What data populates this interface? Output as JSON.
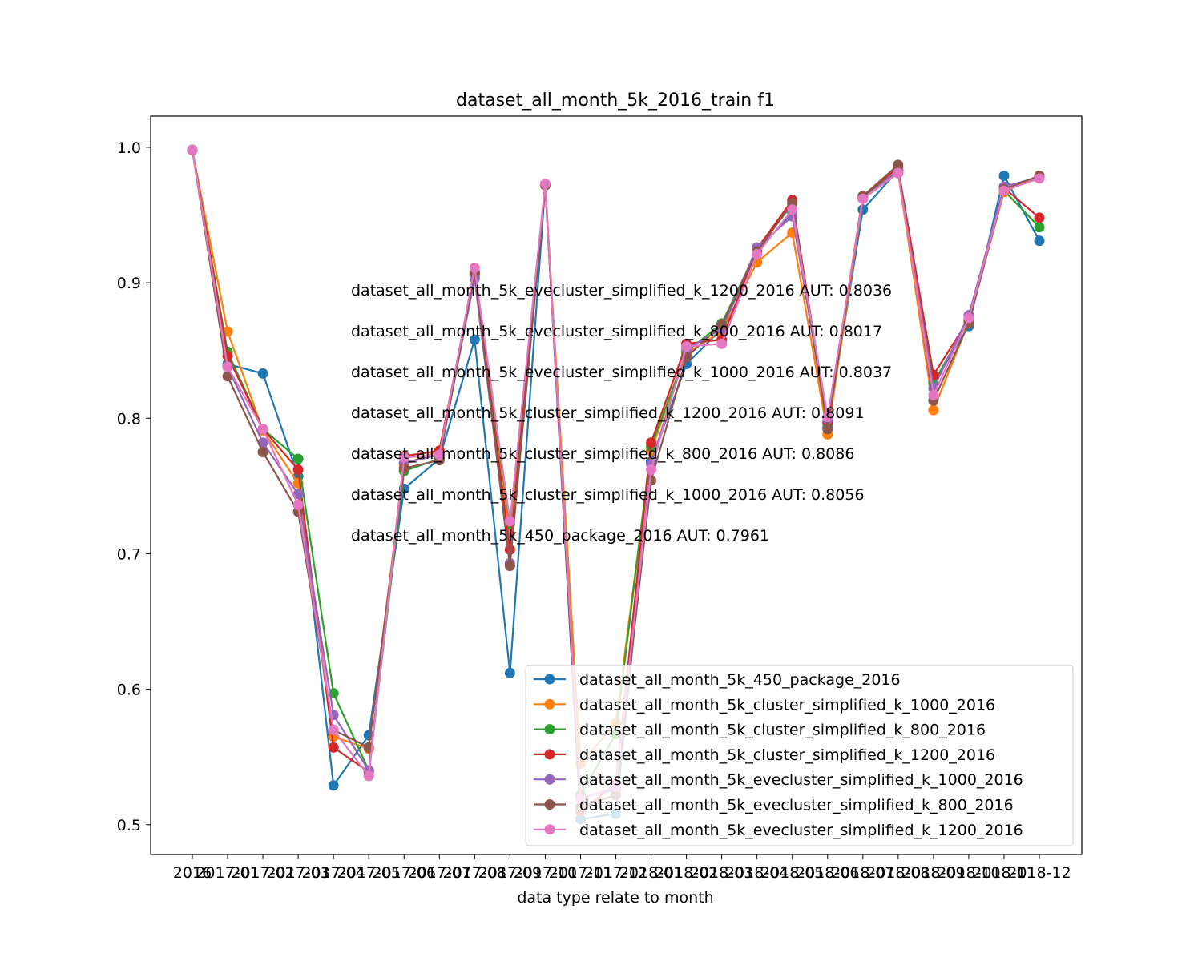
{
  "chart_data": {
    "type": "line",
    "title": "dataset_all_month_5k_2016_train f1",
    "xlabel": "data type relate to month",
    "ylabel": "",
    "ylim": [
      0.478,
      1.023
    ],
    "yticks": [
      "0.5",
      "0.6",
      "0.7",
      "0.8",
      "0.9",
      "1.0"
    ],
    "categories": [
      "2016",
      "2017-01",
      "2017-02",
      "2017-03",
      "2017-04",
      "2017-05",
      "2017-06",
      "2017-07",
      "2017-08",
      "2017-09",
      "2017-10",
      "2017-11",
      "2017-12",
      "2018-01",
      "2018-02",
      "2018-03",
      "2018-04",
      "2018-05",
      "2018-06",
      "2018-07",
      "2018-08",
      "2018-09",
      "2018-10",
      "2018-11",
      "2018-12"
    ],
    "legend_position": "lower right",
    "series": [
      {
        "name": "dataset_all_month_5k_450_package_2016",
        "color": "#1f77b4",
        "values": [
          0.998,
          0.84,
          0.833,
          0.757,
          0.529,
          0.566,
          0.748,
          0.77,
          0.858,
          0.612,
          0.972,
          0.504,
          0.508,
          0.768,
          0.84,
          0.866,
          0.923,
          0.952,
          0.793,
          0.954,
          0.983,
          0.826,
          0.868,
          0.979,
          0.931
        ]
      },
      {
        "name": "dataset_all_month_5k_cluster_simplified_k_1000_2016",
        "color": "#ff7f0e",
        "values": [
          0.998,
          0.864,
          0.791,
          0.752,
          0.565,
          0.556,
          0.766,
          0.776,
          0.906,
          0.715,
          0.972,
          0.545,
          0.575,
          0.776,
          0.848,
          0.864,
          0.915,
          0.937,
          0.788,
          0.962,
          0.981,
          0.806,
          0.871,
          0.967,
          0.979
        ]
      },
      {
        "name": "dataset_all_month_5k_cluster_simplified_k_800_2016",
        "color": "#2ca02c",
        "values": [
          0.998,
          0.849,
          0.792,
          0.77,
          0.597,
          0.54,
          0.761,
          0.77,
          0.905,
          0.722,
          0.972,
          0.522,
          0.567,
          0.779,
          0.849,
          0.87,
          0.924,
          0.958,
          0.796,
          0.963,
          0.983,
          0.826,
          0.872,
          0.968,
          0.941
        ]
      },
      {
        "name": "dataset_all_month_5k_cluster_simplified_k_1200_2016",
        "color": "#d62728",
        "values": [
          0.998,
          0.846,
          0.792,
          0.762,
          0.557,
          0.539,
          0.772,
          0.776,
          0.907,
          0.703,
          0.972,
          0.51,
          0.53,
          0.782,
          0.855,
          0.858,
          0.925,
          0.961,
          0.797,
          0.964,
          0.985,
          0.832,
          0.873,
          0.97,
          0.948
        ]
      },
      {
        "name": "dataset_all_month_5k_evecluster_simplified_k_1000_2016",
        "color": "#9467bd",
        "values": [
          0.998,
          0.838,
          0.782,
          0.744,
          0.581,
          0.54,
          0.767,
          0.773,
          0.903,
          0.693,
          0.972,
          0.52,
          0.526,
          0.766,
          0.851,
          0.866,
          0.926,
          0.949,
          0.799,
          0.962,
          0.983,
          0.822,
          0.876,
          0.971,
          0.978
        ]
      },
      {
        "name": "dataset_all_month_5k_evecluster_simplified_k_800_2016",
        "color": "#8c564b",
        "values": [
          0.998,
          0.831,
          0.775,
          0.731,
          0.57,
          0.557,
          0.763,
          0.769,
          0.908,
          0.691,
          0.972,
          0.513,
          0.522,
          0.754,
          0.845,
          0.869,
          0.923,
          0.959,
          0.792,
          0.964,
          0.987,
          0.813,
          0.87,
          0.969,
          0.979
        ]
      },
      {
        "name": "dataset_all_month_5k_evecluster_simplified_k_1200_2016",
        "color": "#e377c2",
        "values": [
          0.998,
          0.838,
          0.792,
          0.736,
          0.57,
          0.536,
          0.771,
          0.773,
          0.911,
          0.724,
          0.973,
          0.519,
          0.528,
          0.762,
          0.853,
          0.855,
          0.921,
          0.954,
          0.801,
          0.962,
          0.981,
          0.817,
          0.874,
          0.968,
          0.977
        ]
      }
    ],
    "annotations": [
      "dataset_all_month_5k_evecluster_simplified_k_1200_2016 AUT: 0.8036",
      "dataset_all_month_5k_evecluster_simplified_k_800_2016 AUT: 0.8017",
      "dataset_all_month_5k_evecluster_simplified_k_1000_2016 AUT: 0.8037",
      "dataset_all_month_5k_cluster_simplified_k_1200_2016 AUT: 0.8091",
      "dataset_all_month_5k_cluster_simplified_k_800_2016 AUT: 0.8086",
      "dataset_all_month_5k_cluster_simplified_k_1000_2016 AUT: 0.8056",
      "dataset_all_month_5k_450_package_2016 AUT: 0.7961"
    ]
  }
}
